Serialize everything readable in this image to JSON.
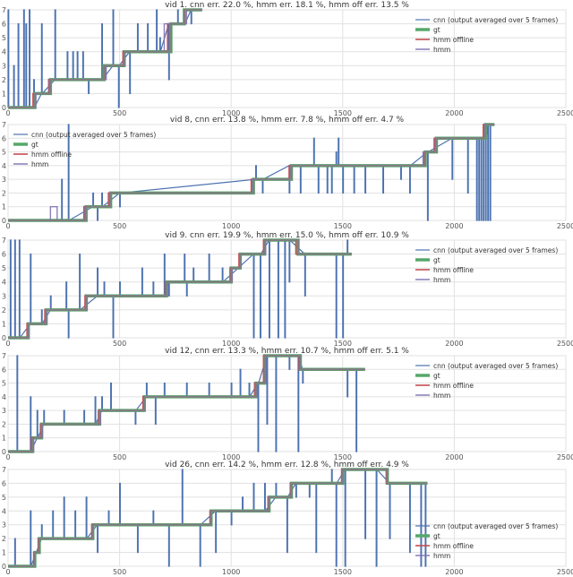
{
  "chart_data": [
    {
      "type": "line",
      "title": "vid 1. cnn err. 22.0 %, hmm err. 18.1 %, hmm off err. 13.5 %",
      "xlim": [
        0,
        2500
      ],
      "ylim": [
        0,
        7
      ],
      "xticks": [
        0,
        500,
        1000,
        1500,
        2000,
        2500
      ],
      "yticks": [
        0,
        1,
        2,
        3,
        4,
        5,
        6,
        7
      ],
      "grid": true,
      "legend": {
        "position": "top-right",
        "entries": [
          "cnn (output averaged over 5 frames)",
          "gt",
          "hmm offline",
          "hmm"
        ]
      },
      "frames": 870,
      "gt": [
        [
          0,
          0
        ],
        [
          120,
          1
        ],
        [
          190,
          2
        ],
        [
          430,
          3
        ],
        [
          520,
          4
        ],
        [
          730,
          6
        ],
        [
          790,
          7
        ]
      ],
      "hmm_offline": [
        [
          0,
          0
        ],
        [
          112,
          1
        ],
        [
          182,
          2
        ],
        [
          435,
          3
        ],
        [
          515,
          4
        ],
        [
          715,
          6
        ],
        [
          792,
          7
        ]
      ],
      "hmm": [
        [
          0,
          0
        ],
        [
          125,
          1
        ],
        [
          185,
          2
        ],
        [
          440,
          3
        ],
        [
          525,
          4
        ],
        [
          700,
          6
        ],
        [
          800,
          7
        ]
      ],
      "spikes": [
        [
          0,
          0,
          7
        ],
        [
          25,
          0,
          3
        ],
        [
          45,
          0,
          6
        ],
        [
          70,
          0,
          7
        ],
        [
          80,
          0,
          6
        ],
        [
          95,
          0,
          7
        ],
        [
          115,
          0,
          2
        ],
        [
          150,
          1,
          6
        ],
        [
          210,
          2,
          7
        ],
        [
          265,
          2,
          4
        ],
        [
          290,
          2,
          4
        ],
        [
          310,
          2,
          4
        ],
        [
          335,
          2,
          4
        ],
        [
          360,
          2,
          1
        ],
        [
          420,
          2,
          6
        ],
        [
          470,
          3,
          7
        ],
        [
          495,
          3,
          0
        ],
        [
          545,
          4,
          1
        ],
        [
          580,
          4,
          6
        ],
        [
          625,
          4,
          6
        ],
        [
          665,
          4,
          7
        ],
        [
          680,
          4,
          5
        ],
        [
          720,
          6,
          2
        ],
        [
          760,
          6,
          7
        ],
        [
          790,
          6,
          6
        ],
        [
          820,
          7,
          6
        ]
      ]
    },
    {
      "type": "line",
      "title": "vid 8, cnn err. 13.8 %, hmm err. 7.8 %, hmm off err. 4.7 %",
      "xlim": [
        0,
        2500
      ],
      "ylim": [
        0,
        7
      ],
      "xticks": [
        0,
        500,
        1000,
        1500,
        2000,
        2500
      ],
      "yticks": [
        0,
        1,
        2,
        3,
        4,
        5,
        6,
        7
      ],
      "grid": true,
      "legend": {
        "position": "top-left",
        "entries": [
          "cnn (output averaged over 5 frames)",
          "gt",
          "hmm offline",
          "hmm"
        ]
      },
      "frames": 2180,
      "gt": [
        [
          0,
          0
        ],
        [
          350,
          1
        ],
        [
          460,
          2
        ],
        [
          1100,
          3
        ],
        [
          1270,
          4
        ],
        [
          1870,
          5
        ],
        [
          1920,
          6
        ],
        [
          2140,
          7
        ]
      ],
      "hmm_offline": [
        [
          0,
          0
        ],
        [
          340,
          1
        ],
        [
          450,
          2
        ],
        [
          1090,
          3
        ],
        [
          1260,
          4
        ],
        [
          1865,
          5
        ],
        [
          1910,
          6
        ],
        [
          2130,
          7
        ]
      ],
      "hmm": [
        [
          0,
          0
        ],
        [
          190,
          1
        ],
        [
          220,
          0
        ],
        [
          345,
          1
        ],
        [
          455,
          2
        ],
        [
          1095,
          3
        ],
        [
          1265,
          4
        ],
        [
          1860,
          5
        ],
        [
          1915,
          6
        ],
        [
          2135,
          7
        ]
      ],
      "spikes": [
        [
          240,
          0,
          3
        ],
        [
          270,
          0,
          7
        ],
        [
          380,
          1,
          2
        ],
        [
          400,
          1,
          0
        ],
        [
          420,
          1,
          2
        ],
        [
          500,
          2,
          1
        ],
        [
          1110,
          3,
          4
        ],
        [
          1140,
          3,
          2
        ],
        [
          1260,
          4,
          2
        ],
        [
          1310,
          4,
          2
        ],
        [
          1370,
          4,
          6
        ],
        [
          1390,
          4,
          2
        ],
        [
          1430,
          4,
          2
        ],
        [
          1450,
          4,
          2
        ],
        [
          1470,
          4,
          5
        ],
        [
          1480,
          4,
          6
        ],
        [
          1500,
          4,
          2
        ],
        [
          1550,
          4,
          2
        ],
        [
          1600,
          4,
          2
        ],
        [
          1680,
          4,
          2
        ],
        [
          1760,
          4,
          3
        ],
        [
          1800,
          4,
          2
        ],
        [
          1880,
          5,
          0
        ],
        [
          1990,
          6,
          3
        ],
        [
          2060,
          6,
          2
        ],
        [
          2100,
          6,
          0
        ],
        [
          2110,
          6,
          0
        ],
        [
          2120,
          6,
          0
        ],
        [
          2130,
          6,
          0
        ],
        [
          2140,
          6,
          0
        ],
        [
          2150,
          7,
          0
        ],
        [
          2160,
          7,
          0
        ]
      ]
    },
    {
      "type": "line",
      "title": "vid 9. cnn err. 19.9 %, hmm err. 15.0 %, hmm off err. 10.9 %",
      "xlim": [
        0,
        2500
      ],
      "ylim": [
        0,
        7
      ],
      "xticks": [
        0,
        500,
        1000,
        1500,
        2000,
        2500
      ],
      "yticks": [
        0,
        1,
        2,
        3,
        4,
        5,
        6,
        7
      ],
      "grid": true,
      "legend": {
        "position": "top-right",
        "entries": [
          "cnn (output averaged over 5 frames)",
          "gt",
          "hmm offline",
          "hmm"
        ]
      },
      "frames": 1540,
      "gt": [
        [
          0,
          0
        ],
        [
          90,
          1
        ],
        [
          170,
          2
        ],
        [
          350,
          3
        ],
        [
          710,
          4
        ],
        [
          1000,
          5
        ],
        [
          1040,
          6
        ],
        [
          1150,
          7
        ],
        [
          1300,
          6
        ]
      ],
      "hmm_offline": [
        [
          0,
          0
        ],
        [
          85,
          1
        ],
        [
          165,
          2
        ],
        [
          345,
          3
        ],
        [
          705,
          4
        ],
        [
          995,
          5
        ],
        [
          1035,
          6
        ],
        [
          1145,
          7
        ],
        [
          1290,
          6
        ]
      ],
      "hmm": [
        [
          0,
          0
        ],
        [
          95,
          1
        ],
        [
          175,
          2
        ],
        [
          355,
          3
        ],
        [
          715,
          4
        ],
        [
          1005,
          5
        ],
        [
          1045,
          6
        ],
        [
          1155,
          7
        ],
        [
          1300,
          6
        ]
      ],
      "spikes": [
        [
          10,
          0,
          7
        ],
        [
          30,
          0,
          7
        ],
        [
          50,
          0,
          7
        ],
        [
          100,
          1,
          6
        ],
        [
          150,
          1,
          2
        ],
        [
          190,
          2,
          3
        ],
        [
          260,
          2,
          4
        ],
        [
          270,
          2,
          0
        ],
        [
          320,
          2,
          6
        ],
        [
          400,
          3,
          5
        ],
        [
          430,
          3,
          4
        ],
        [
          470,
          3,
          0
        ],
        [
          500,
          3,
          4
        ],
        [
          600,
          3,
          5
        ],
        [
          650,
          3,
          4
        ],
        [
          700,
          3,
          6
        ],
        [
          720,
          4,
          3
        ],
        [
          790,
          4,
          6
        ],
        [
          800,
          4,
          3
        ],
        [
          830,
          4,
          5
        ],
        [
          900,
          4,
          6
        ],
        [
          960,
          4,
          5
        ],
        [
          1100,
          6,
          0
        ],
        [
          1130,
          6,
          0
        ],
        [
          1170,
          7,
          0
        ],
        [
          1210,
          7,
          0
        ],
        [
          1240,
          7,
          0
        ],
        [
          1260,
          7,
          4
        ],
        [
          1330,
          6,
          3
        ],
        [
          1470,
          6,
          0
        ],
        [
          1500,
          6,
          0
        ],
        [
          1520,
          6,
          7
        ]
      ]
    },
    {
      "type": "line",
      "title": "vid 12, cnn err. 13.3 %, hmm err. 10.7 %, hmm off err. 5.1 %",
      "xlim": [
        0,
        2500
      ],
      "ylim": [
        0,
        7
      ],
      "xticks": [
        0,
        500,
        1000,
        1500,
        2000,
        2500
      ],
      "yticks": [
        0,
        1,
        2,
        3,
        4,
        5,
        6,
        7
      ],
      "grid": true,
      "legend": {
        "position": "top-right",
        "entries": [
          "cnn (output averaged over 5 frames)",
          "gt",
          "hmm offline",
          "hmm"
        ]
      },
      "frames": 1600,
      "gt": [
        [
          0,
          0
        ],
        [
          110,
          1
        ],
        [
          150,
          2
        ],
        [
          410,
          3
        ],
        [
          610,
          4
        ],
        [
          1110,
          5
        ],
        [
          1150,
          7
        ],
        [
          1310,
          6
        ]
      ],
      "hmm_offline": [
        [
          0,
          0
        ],
        [
          105,
          1
        ],
        [
          145,
          2
        ],
        [
          405,
          3
        ],
        [
          605,
          4
        ],
        [
          1105,
          5
        ],
        [
          1145,
          7
        ],
        [
          1305,
          6
        ]
      ],
      "hmm": [
        [
          0,
          0
        ],
        [
          115,
          1
        ],
        [
          155,
          2
        ],
        [
          415,
          3
        ],
        [
          615,
          4
        ],
        [
          1115,
          5
        ],
        [
          1155,
          7
        ],
        [
          1310,
          6
        ]
      ],
      "spikes": [
        [
          40,
          0,
          7
        ],
        [
          100,
          0,
          4
        ],
        [
          130,
          1,
          3
        ],
        [
          160,
          2,
          3
        ],
        [
          250,
          2,
          3
        ],
        [
          340,
          2,
          3
        ],
        [
          390,
          2,
          4
        ],
        [
          420,
          3,
          4
        ],
        [
          460,
          3,
          5
        ],
        [
          530,
          3,
          3
        ],
        [
          570,
          3,
          2
        ],
        [
          620,
          4,
          5
        ],
        [
          660,
          4,
          2
        ],
        [
          700,
          4,
          5
        ],
        [
          800,
          4,
          5
        ],
        [
          900,
          4,
          5
        ],
        [
          1000,
          4,
          5
        ],
        [
          1040,
          4,
          6
        ],
        [
          1080,
          4,
          5
        ],
        [
          1120,
          5,
          0
        ],
        [
          1160,
          7,
          2
        ],
        [
          1200,
          7,
          0
        ],
        [
          1260,
          7,
          6
        ],
        [
          1300,
          7,
          0
        ],
        [
          1320,
          6,
          5
        ],
        [
          1520,
          6,
          4
        ],
        [
          1560,
          6,
          0
        ]
      ]
    },
    {
      "type": "line",
      "title": "vid 26, cnn err. 14.2 %, hmm err. 12.8 %, hmm off err. 4.9 %",
      "xlim": [
        0,
        2500
      ],
      "ylim": [
        0,
        7
      ],
      "xticks": [
        0,
        500,
        1000,
        1500,
        2000,
        2500
      ],
      "yticks": [
        0,
        1,
        2,
        3,
        4,
        5,
        6,
        7
      ],
      "grid": true,
      "legend": {
        "position": "bottom-right",
        "entries": [
          "cnn (output averaged over 5 frames)",
          "gt",
          "hmm offline",
          "hmm"
        ]
      },
      "frames": 1880,
      "gt": [
        [
          0,
          0
        ],
        [
          120,
          1
        ],
        [
          140,
          2
        ],
        [
          380,
          3
        ],
        [
          910,
          4
        ],
        [
          1170,
          5
        ],
        [
          1270,
          6
        ],
        [
          1500,
          7
        ],
        [
          1700,
          6
        ]
      ],
      "hmm_offline": [
        [
          0,
          0
        ],
        [
          115,
          1
        ],
        [
          135,
          2
        ],
        [
          375,
          3
        ],
        [
          905,
          4
        ],
        [
          1165,
          5
        ],
        [
          1265,
          6
        ],
        [
          1495,
          7
        ],
        [
          1695,
          6
        ]
      ],
      "hmm": [
        [
          0,
          0
        ],
        [
          118,
          1
        ],
        [
          138,
          2
        ],
        [
          378,
          3
        ],
        [
          908,
          4
        ],
        [
          1168,
          5
        ],
        [
          1268,
          6
        ],
        [
          1498,
          7
        ],
        [
          1698,
          6
        ]
      ],
      "spikes": [
        [
          30,
          0,
          2
        ],
        [
          100,
          0,
          4
        ],
        [
          150,
          2,
          3
        ],
        [
          200,
          2,
          4
        ],
        [
          250,
          2,
          5
        ],
        [
          300,
          2,
          4
        ],
        [
          350,
          2,
          5
        ],
        [
          400,
          3,
          1
        ],
        [
          450,
          3,
          4
        ],
        [
          500,
          3,
          6
        ],
        [
          580,
          3,
          1
        ],
        [
          650,
          3,
          4
        ],
        [
          720,
          3,
          0
        ],
        [
          780,
          3,
          7
        ],
        [
          860,
          3,
          0
        ],
        [
          930,
          4,
          1
        ],
        [
          1000,
          4,
          3
        ],
        [
          1050,
          4,
          5
        ],
        [
          1100,
          4,
          6
        ],
        [
          1150,
          4,
          6
        ],
        [
          1200,
          5,
          6
        ],
        [
          1250,
          5,
          1
        ],
        [
          1290,
          6,
          5
        ],
        [
          1350,
          6,
          5
        ],
        [
          1380,
          6,
          1
        ],
        [
          1450,
          6,
          7
        ],
        [
          1470,
          6,
          0
        ],
        [
          1510,
          7,
          0
        ],
        [
          1600,
          7,
          2
        ],
        [
          1650,
          7,
          0
        ],
        [
          1710,
          6,
          2
        ],
        [
          1800,
          6,
          1
        ],
        [
          1850,
          6,
          0
        ],
        [
          1870,
          6,
          0
        ]
      ]
    }
  ]
}
